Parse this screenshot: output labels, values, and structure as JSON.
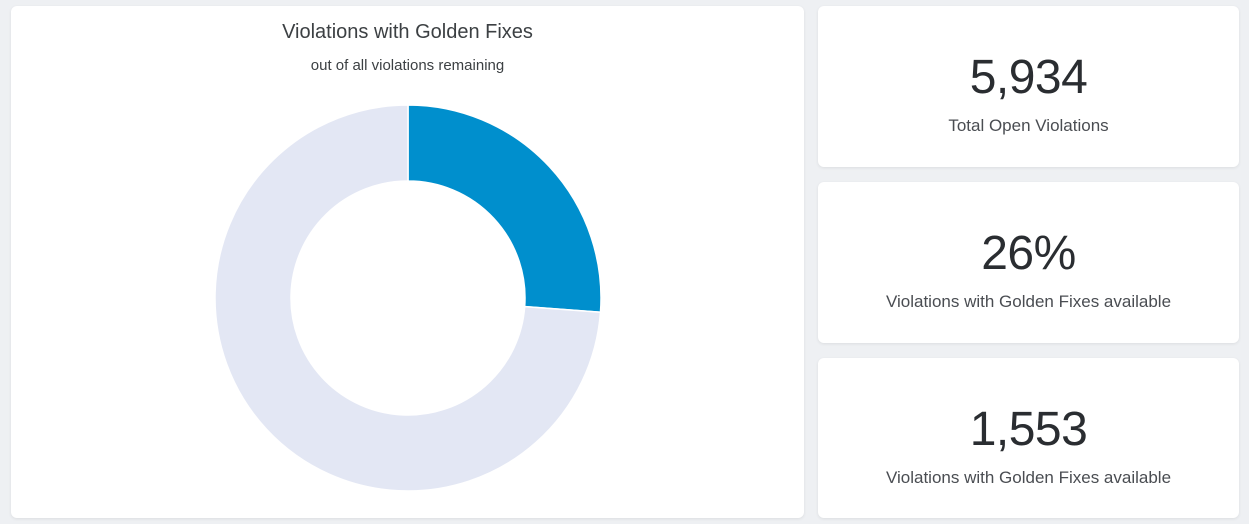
{
  "chart_card": {
    "title": "Violations with Golden Fixes",
    "subtitle": "out of all violations remaining"
  },
  "chart_data": {
    "type": "pie",
    "variant": "donut",
    "title": "Violations with Golden Fixes",
    "subtitle": "out of all violations remaining",
    "slices": [
      {
        "value": 1553,
        "color": "#008fcd"
      },
      {
        "value": 4381,
        "color": "#e3e7f4"
      }
    ],
    "total": 5934,
    "legend": "none"
  },
  "stats": [
    {
      "value": "5,934",
      "label": "Total Open Violations"
    },
    {
      "value": "26%",
      "label": "Violations with Golden Fixes available"
    },
    {
      "value": "1,553",
      "label": "Violations with Golden Fixes available"
    }
  ]
}
